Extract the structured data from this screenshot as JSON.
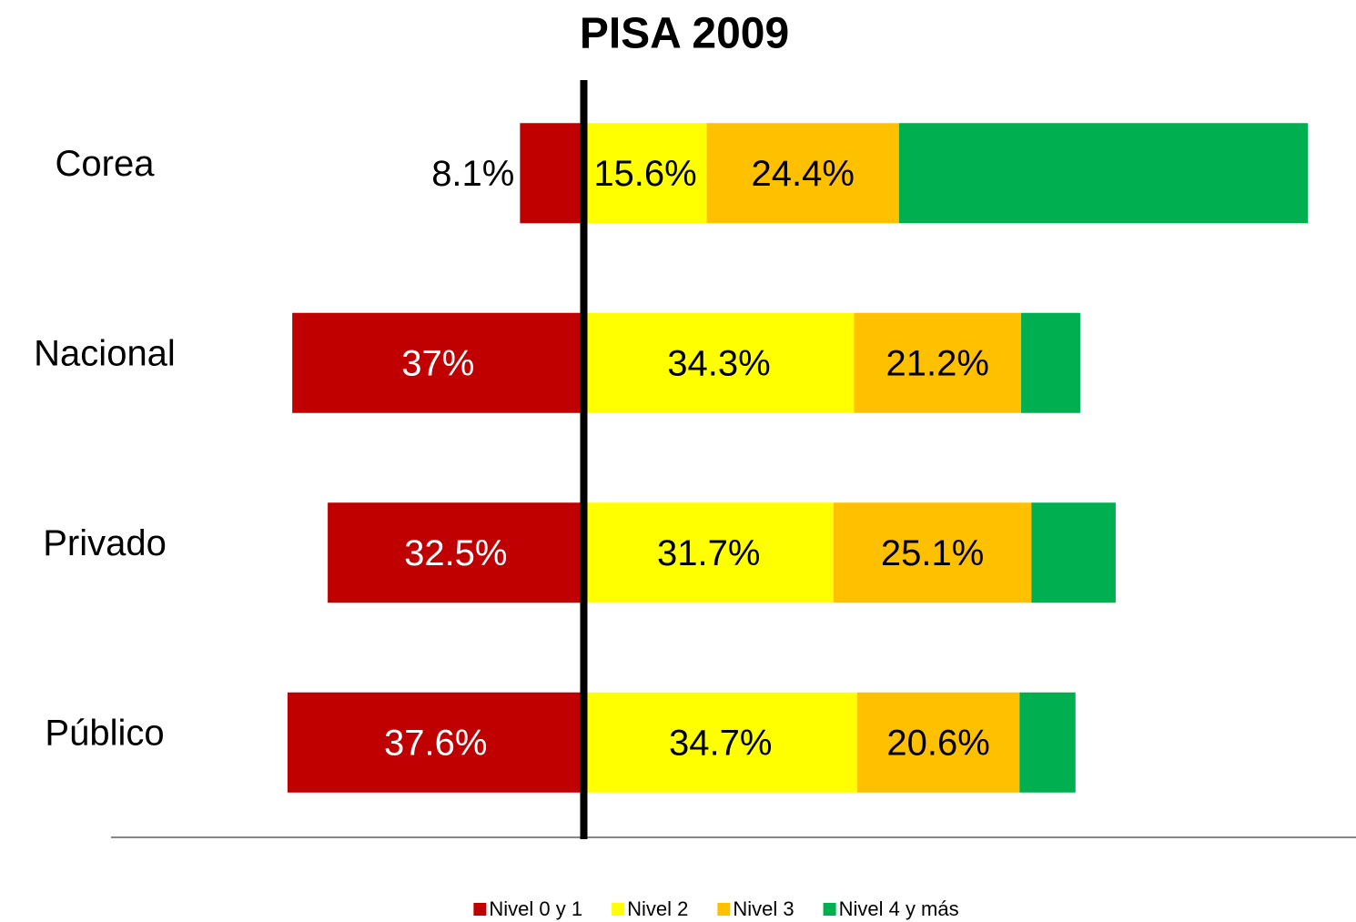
{
  "chart_data": {
    "type": "diverging-stacked-bar",
    "title": "PISA 2009",
    "categories": [
      "Corea",
      "Nacional",
      "Privado",
      "Público"
    ],
    "series": [
      {
        "name": "Nivel 0 y 1",
        "color": "#c00000",
        "values": [
          -8.1,
          -37,
          -32.5,
          -37.6
        ],
        "value_labels": [
          "8.1%",
          "37%",
          "32.5%",
          "37.6%"
        ]
      },
      {
        "name": "Nivel 2",
        "color": "#ffff00",
        "values": [
          15.6,
          34.3,
          31.7,
          34.7
        ],
        "value_labels": [
          "15.6%",
          "34.3%",
          "31.7%",
          "34.7%"
        ]
      },
      {
        "name": "Nivel 3",
        "color": "#ffc000",
        "values": [
          24.4,
          21.2,
          25.1,
          20.6
        ],
        "value_labels": [
          "24.4%",
          "21.2%",
          "25.1%",
          "20.6%"
        ]
      },
      {
        "name": "Nivel 4 y más",
        "color": "#00b050",
        "values": [
          51.9,
          7.5,
          10.7,
          7.1
        ]
      }
    ],
    "xlim": [
      -60,
      98
    ],
    "legend": "bottom"
  }
}
